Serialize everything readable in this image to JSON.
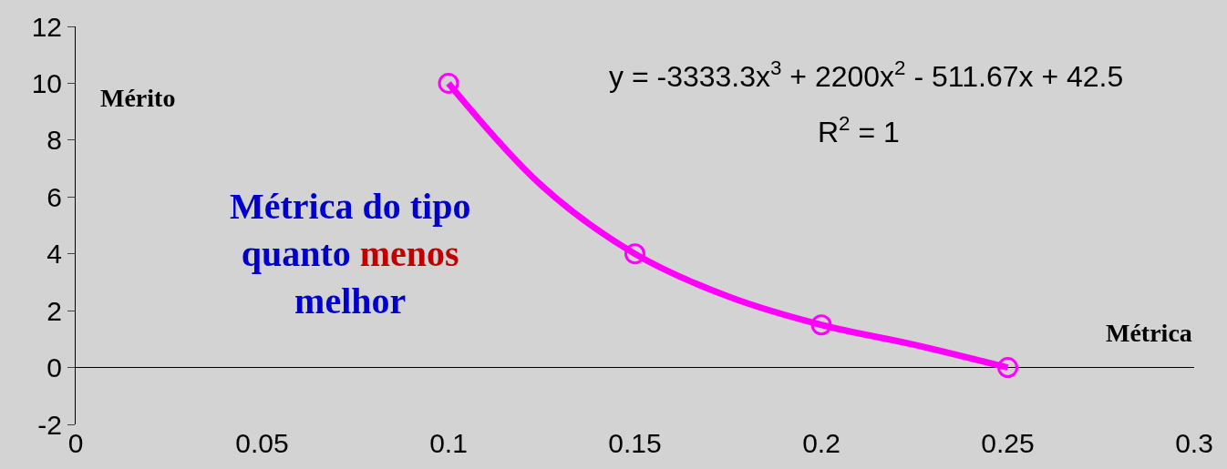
{
  "chart_data": {
    "type": "scatter",
    "ylabel": "Mérito",
    "xlabel": "Métrica",
    "annotations": [
      "y = -3333.3x$^{3}$ + 2200x$^{2}$ - 511.67x + 42.5",
      "R$^{2}$ = 1",
      "Métrica do tipo quanto menos melhor"
    ],
    "x": [
      0.1,
      0.15,
      0.2,
      0.25
    ],
    "series": [
      {
        "color": "#ff00ff",
        "values": [
          10,
          4,
          1.5,
          0
        ],
        "marker": "circle"
      },
      {
        "type": "line",
        "color": "#ff00ff",
        "x": [
          0.1,
          0.125,
          0.15,
          0.175,
          0.2,
          0.225,
          0.25
        ],
        "values": [
          10,
          6.4,
          4,
          2.5,
          1.5,
          0.8,
          0
        ],
        "line_style": "solid"
      }
    ],
    "xlim": [
      0,
      0.3
    ],
    "xticks": [
      0,
      0.05,
      0.1,
      0.15,
      0.2,
      0.25,
      0.3
    ],
    "ylim": [
      -2,
      12
    ],
    "yticks": [
      -2,
      0,
      2,
      4,
      6,
      8,
      10,
      12
    ],
    "grid": false
  }
}
